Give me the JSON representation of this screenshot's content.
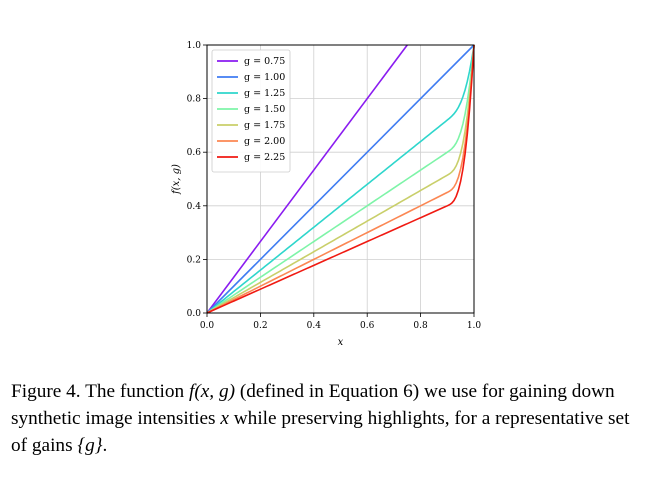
{
  "chart_data": {
    "type": "line",
    "title": "",
    "xlabel": "x",
    "ylabel": "f(x, g)",
    "xlim": [
      0.0,
      1.0
    ],
    "ylim": [
      0.0,
      1.0
    ],
    "xticks": [
      "0.0",
      "0.2",
      "0.4",
      "0.6",
      "0.8",
      "1.0"
    ],
    "yticks": [
      "0.0",
      "0.2",
      "0.4",
      "0.6",
      "0.8",
      "1.0"
    ],
    "grid": true,
    "legend_position": "top-left",
    "knee_x": 0.9,
    "series": [
      {
        "name": "g = 0.75",
        "gain": 0.75,
        "color": "#8a1cf0"
      },
      {
        "name": "g = 1.00",
        "gain": 1.0,
        "color": "#3f7cf2"
      },
      {
        "name": "g = 1.25",
        "gain": 1.25,
        "color": "#2ed6cc"
      },
      {
        "name": "g = 1.50",
        "gain": 1.5,
        "color": "#7ef4a8"
      },
      {
        "name": "g = 1.75",
        "gain": 1.75,
        "color": "#c9cf6a"
      },
      {
        "name": "g = 2.00",
        "gain": 2.0,
        "color": "#fb8753"
      },
      {
        "name": "g = 2.25",
        "gain": 2.25,
        "color": "#f01a12"
      }
    ]
  },
  "caption": {
    "part1": "Figure 4. The function ",
    "math1": "f(x, g)",
    "part2": " (defined in Equation 6) we use for gaining down synthetic image intensities ",
    "math2": "x",
    "part3": " while preserving highlights, for a representative set of gains ",
    "math3": "{g}",
    "part4": "."
  }
}
